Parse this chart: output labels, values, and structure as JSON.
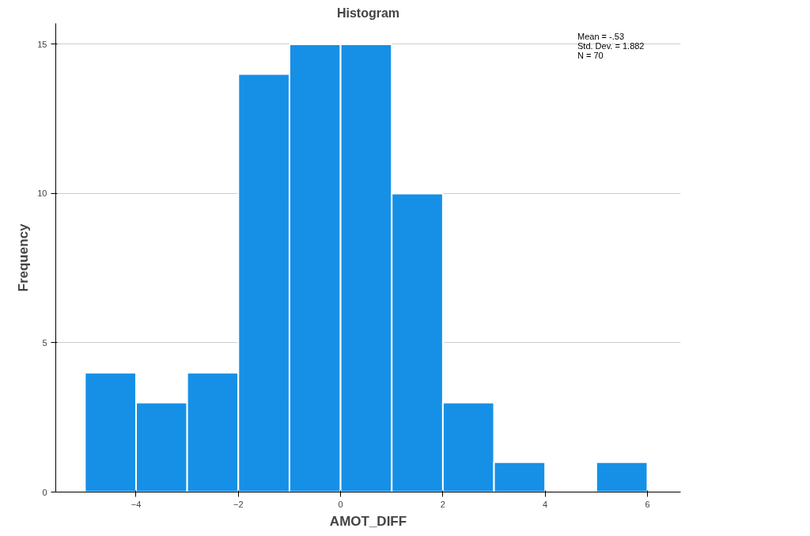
{
  "chart_data": {
    "type": "histogram",
    "title": "Histogram",
    "xlabel": "AMOT_DIFF",
    "ylabel": "Frequency",
    "bins": [
      -5,
      -4,
      -3,
      -2,
      -1,
      0,
      1,
      2,
      3,
      4,
      5,
      6
    ],
    "values": [
      4,
      3,
      4,
      14,
      15,
      15,
      10,
      3,
      1,
      0,
      1
    ],
    "color": "#1690e6",
    "xlim": [
      -5.57,
      6.65
    ],
    "xticks": [
      -4,
      -2,
      0,
      2,
      4,
      6
    ],
    "ylim": [
      0,
      15.7
    ],
    "yticks": [
      0,
      5,
      10,
      15
    ],
    "grid": "y",
    "annotations": [
      "Mean = -.53",
      "Std. Dev. = 1.882",
      "N = 70"
    ]
  }
}
